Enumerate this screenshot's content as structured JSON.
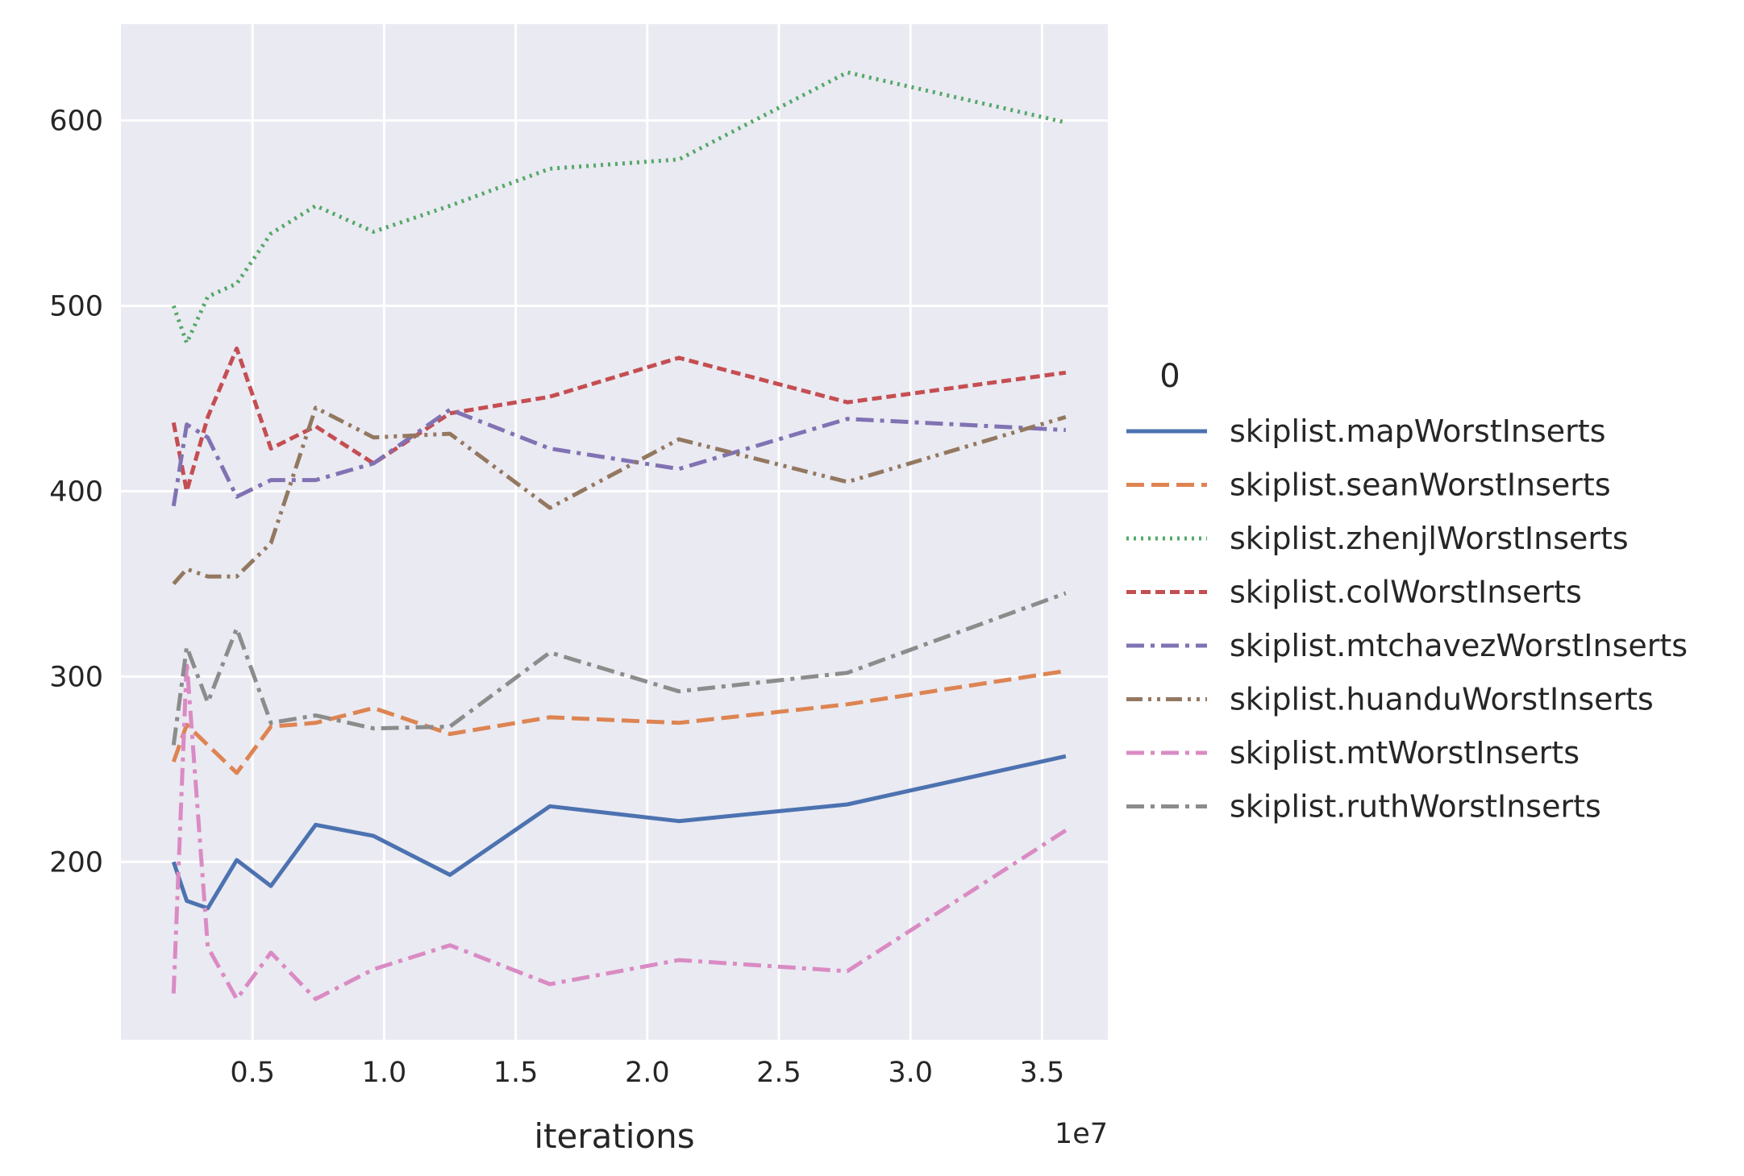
{
  "chart_data": {
    "type": "line",
    "xlabel": "iterations",
    "x_offset_text": "1e7",
    "ylabel": "",
    "xlim": [
      0.0,
      3.75
    ],
    "ylim": [
      104,
      652
    ],
    "xticks": [
      0.5,
      1.0,
      1.5,
      2.0,
      2.5,
      3.0,
      3.5
    ],
    "xtick_labels": [
      "0.5",
      "1.0",
      "1.5",
      "2.0",
      "2.5",
      "3.0",
      "3.5"
    ],
    "yticks": [
      200,
      300,
      400,
      500,
      600
    ],
    "ytick_labels": [
      "200",
      "300",
      "400",
      "500",
      "600"
    ],
    "grid": true,
    "legend_title": "0",
    "legend_position": "right",
    "x": [
      0.2,
      0.25,
      0.33,
      0.44,
      0.57,
      0.74,
      0.96,
      1.25,
      1.63,
      2.12,
      2.76,
      3.59
    ],
    "series": [
      {
        "name": "skiplist.mapWorstInserts",
        "color": "#4c72b0",
        "dash": "solid",
        "values": [
          200,
          179,
          175,
          201,
          187,
          220,
          214,
          193,
          230,
          222,
          231,
          257
        ]
      },
      {
        "name": "skiplist.seanWorstInserts",
        "color": "#dd8452",
        "dash": "dashed",
        "values": [
          254,
          274,
          263,
          248,
          273,
          275,
          283,
          269,
          278,
          275,
          285,
          303
        ]
      },
      {
        "name": "skiplist.zhenjlWorstInserts",
        "color": "#55a868",
        "dash": "dotted",
        "values": [
          500,
          480,
          505,
          512,
          539,
          554,
          540,
          554,
          574,
          579,
          626,
          599
        ]
      },
      {
        "name": "skiplist.colWorstInserts",
        "color": "#c44e52",
        "dash": "densedash",
        "values": [
          437,
          400,
          440,
          477,
          423,
          435,
          415,
          442,
          451,
          472,
          448,
          464
        ]
      },
      {
        "name": "skiplist.mtchavezWorstInserts",
        "color": "#8172b3",
        "dash": "dashdot",
        "values": [
          392,
          436,
          429,
          397,
          406,
          406,
          415,
          444,
          423,
          412,
          439,
          433
        ]
      },
      {
        "name": "skiplist.huanduWorstInserts",
        "color": "#937860",
        "dash": "dashdotdot",
        "values": [
          350,
          358,
          354,
          354,
          372,
          445,
          429,
          431,
          391,
          428,
          405,
          440
        ]
      },
      {
        "name": "skiplist.mtWorstInserts",
        "color": "#da8bc3",
        "dash": "dashdot",
        "values": [
          129,
          308,
          154,
          126,
          151,
          126,
          142,
          155,
          134,
          147,
          141,
          217
        ]
      },
      {
        "name": "skiplist.ruthWorstInserts",
        "color": "#8c8c8c",
        "dash": "dashdot",
        "values": [
          263,
          316,
          286,
          326,
          275,
          279,
          272,
          273,
          313,
          292,
          302,
          345
        ]
      }
    ]
  }
}
